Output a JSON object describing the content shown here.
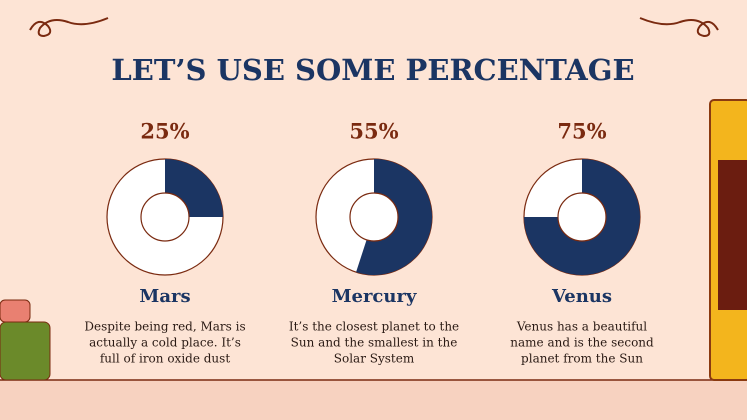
{
  "title": "LET’S USE SOME PERCENTAGE",
  "chart_data": [
    {
      "type": "donut",
      "title": "Mars",
      "values": [
        25
      ],
      "value_labels": [
        "25%"
      ],
      "color": "#1b3563",
      "description": [
        "Despite being red, Mars is",
        "actually a cold place. It’s",
        "full of iron oxide dust"
      ]
    },
    {
      "type": "donut",
      "title": "Mercury",
      "values": [
        55
      ],
      "value_labels": [
        "55%"
      ],
      "color": "#1b3563",
      "description": [
        "It’s the closest planet to the",
        "Sun and the smallest in the",
        "Solar System"
      ]
    },
    {
      "type": "donut",
      "title": "Venus",
      "values": [
        75
      ],
      "value_labels": [
        "75%"
      ],
      "color": "#1b3563",
      "description": [
        "Venus has a beautiful",
        "name and is the second",
        "planet from the Sun"
      ]
    }
  ]
}
